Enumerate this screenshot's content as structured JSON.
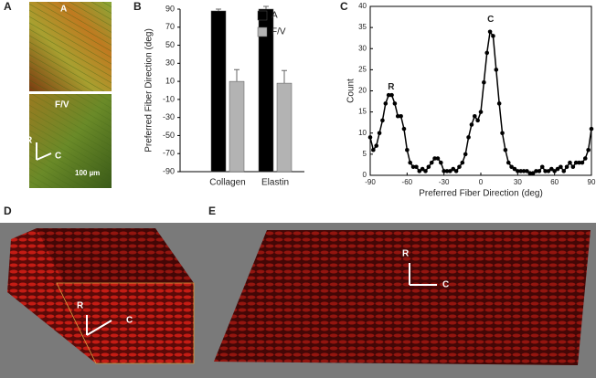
{
  "panel_labels": [
    "A",
    "B",
    "C",
    "D",
    "E"
  ],
  "image_labels": {
    "a_top": "A",
    "a_bottom": "F/V",
    "a_r": "R",
    "a_c": "C",
    "scale": "100 µm",
    "d_r": "R",
    "d_c": "C",
    "e_r": "R",
    "e_c": "C"
  },
  "chart_data": [
    {
      "type": "bar",
      "ylabel": "Preferred Fiber Direction (deg)",
      "categories": [
        "Collagen",
        "Elastin"
      ],
      "series": [
        {
          "name": "A",
          "color": "#000000",
          "values": [
            88,
            90
          ],
          "errors": [
            2,
            3
          ]
        },
        {
          "name": "F/V",
          "color": "#b3b3b3",
          "values": [
            10,
            8
          ],
          "errors": [
            13,
            14
          ]
        }
      ],
      "ylim": [
        -90,
        90
      ],
      "yticks": [
        -90,
        -70,
        -50,
        -30,
        -10,
        10,
        30,
        50,
        70,
        90
      ],
      "legend": "upper right"
    },
    {
      "type": "line",
      "xlabel": "Preferred Fiber Direction (deg)",
      "ylabel": "Count",
      "x": [
        -90,
        -87.5,
        -85,
        -82.5,
        -80,
        -77.5,
        -75,
        -72.5,
        -70,
        -67.5,
        -65,
        -62.5,
        -60,
        -57.5,
        -55,
        -52.5,
        -50,
        -47.5,
        -45,
        -42.5,
        -40,
        -37.5,
        -35,
        -32.5,
        -30,
        -27.5,
        -25,
        -22.5,
        -20,
        -17.5,
        -15,
        -12.5,
        -10,
        -7.5,
        -5,
        -2.5,
        0,
        2.5,
        5,
        7.5,
        10,
        12.5,
        15,
        17.5,
        20,
        22.5,
        25,
        27.5,
        30,
        32.5,
        35,
        37.5,
        40,
        42.5,
        45,
        47.5,
        50,
        52.5,
        55,
        57.5,
        60,
        62.5,
        65,
        67.5,
        70,
        72.5,
        75,
        77.5,
        80,
        82.5,
        85,
        87.5,
        90
      ],
      "series": [
        {
          "color": "#000000",
          "values": [
            9,
            6,
            7,
            10,
            13,
            17,
            19,
            19,
            17,
            14,
            14,
            11,
            6,
            3,
            2,
            2,
            1,
            1.5,
            1,
            2,
            3,
            4,
            4,
            3,
            1,
            1,
            1,
            1.5,
            1,
            2,
            3,
            5,
            9,
            12,
            14,
            13,
            15,
            22,
            29,
            34,
            33,
            25,
            17,
            10,
            6,
            3,
            2,
            1.5,
            1,
            1,
            1,
            1,
            0.5,
            0.5,
            1,
            1,
            2,
            1,
            1,
            1.5,
            1,
            1.5,
            2,
            1,
            2,
            3,
            2,
            3,
            3,
            3,
            4,
            6,
            11
          ]
        }
      ],
      "xlim": [
        -90,
        90
      ],
      "ylim": [
        0,
        40
      ],
      "xticks": [
        -90,
        -60,
        -30,
        0,
        30,
        60,
        90
      ],
      "yticks": [
        0,
        5,
        10,
        15,
        20,
        25,
        30,
        35,
        40
      ],
      "annotations": [
        {
          "text": "R",
          "x": -73,
          "y": 19
        },
        {
          "text": "C",
          "x": 8,
          "y": 35
        }
      ]
    }
  ]
}
